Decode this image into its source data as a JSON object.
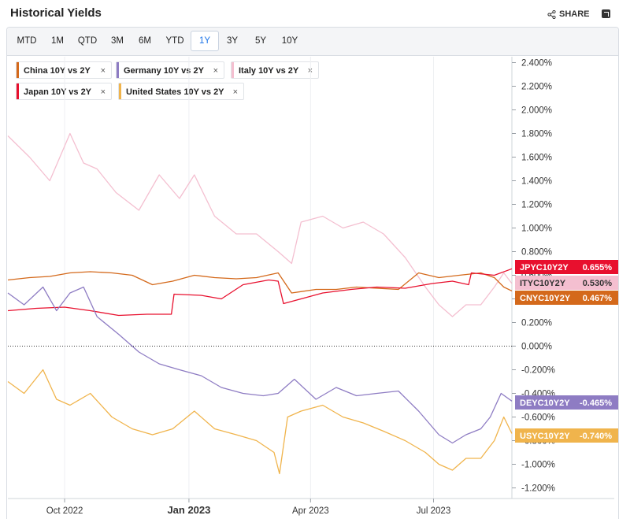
{
  "header": {
    "title": "Historical Yields",
    "share_label": "SHARE"
  },
  "tabs": [
    "MTD",
    "1M",
    "QTD",
    "3M",
    "6M",
    "YTD",
    "1Y",
    "3Y",
    "5Y",
    "10Y"
  ],
  "active_tab": "1Y",
  "legend": [
    {
      "label": "China 10Y vs 2Y",
      "color": "#d4691b"
    },
    {
      "label": "Germany 10Y vs 2Y",
      "color": "#8e7cc3"
    },
    {
      "label": "Italy 10Y vs 2Y",
      "color": "#f4bfd0"
    },
    {
      "label": "Japan 10Y vs 2Y",
      "color": "#e8102e"
    },
    {
      "label": "United States 10Y vs 2Y",
      "color": "#f0b44c"
    }
  ],
  "chart_data": {
    "type": "line",
    "title": "Historical Yields",
    "x_ticks": [
      "Oct 2022",
      "Jan 2023",
      "Apr 2023",
      "Jul 2023"
    ],
    "x_range": [
      "2022-08-20",
      "2023-08-28"
    ],
    "ylim": [
      -1.25,
      2.5
    ],
    "y_ticks": [
      "2.400%",
      "2.200%",
      "2.000%",
      "1.800%",
      "1.600%",
      "1.400%",
      "1.200%",
      "1.000%",
      "0.800%",
      "0.600%",
      "0.400%",
      "0.200%",
      "0.000%",
      "-0.200%",
      "-0.400%",
      "-0.600%",
      "-0.800%",
      "-1.000%",
      "-1.200%"
    ],
    "zero_line": "dotted",
    "series": [
      {
        "name": "Italy 10Y vs 2Y",
        "ticker": "ITYC10Y2Y",
        "last": "0.530%",
        "color": "#f4bfd0",
        "x": [
          "2022-08-20",
          "2022-09-05",
          "2022-09-20",
          "2022-10-05",
          "2022-10-15",
          "2022-10-25",
          "2022-11-08",
          "2022-11-25",
          "2022-12-10",
          "2022-12-25",
          "2023-01-05",
          "2023-01-20",
          "2023-02-05",
          "2023-02-20",
          "2023-03-08",
          "2023-03-18",
          "2023-03-25",
          "2023-04-10",
          "2023-04-25",
          "2023-05-10",
          "2023-05-25",
          "2023-06-10",
          "2023-06-25",
          "2023-07-05",
          "2023-07-15",
          "2023-07-25",
          "2023-08-05",
          "2023-08-15",
          "2023-08-22",
          "2023-08-28"
        ],
        "values": [
          1.78,
          1.6,
          1.4,
          1.8,
          1.55,
          1.5,
          1.3,
          1.15,
          1.45,
          1.25,
          1.45,
          1.1,
          0.95,
          0.95,
          0.8,
          0.7,
          1.05,
          1.1,
          1.0,
          1.05,
          0.95,
          0.75,
          0.5,
          0.35,
          0.25,
          0.35,
          0.35,
          0.5,
          0.62,
          0.53
        ]
      },
      {
        "name": "China 10Y vs 2Y",
        "ticker": "CNYC10Y2Y",
        "last": "0.467%",
        "color": "#d4691b",
        "x": [
          "2022-08-20",
          "2022-09-05",
          "2022-09-20",
          "2022-10-05",
          "2022-10-20",
          "2022-11-05",
          "2022-11-20",
          "2022-12-05",
          "2022-12-20",
          "2023-01-05",
          "2023-01-20",
          "2023-02-05",
          "2023-02-20",
          "2023-03-08",
          "2023-03-18",
          "2023-04-05",
          "2023-04-20",
          "2023-05-05",
          "2023-05-20",
          "2023-06-05",
          "2023-06-20",
          "2023-07-05",
          "2023-07-20",
          "2023-08-05",
          "2023-08-15",
          "2023-08-22",
          "2023-08-28"
        ],
        "values": [
          0.56,
          0.58,
          0.59,
          0.62,
          0.63,
          0.62,
          0.6,
          0.52,
          0.55,
          0.6,
          0.58,
          0.57,
          0.58,
          0.62,
          0.45,
          0.48,
          0.48,
          0.5,
          0.49,
          0.48,
          0.62,
          0.58,
          0.6,
          0.62,
          0.58,
          0.5,
          0.467
        ]
      },
      {
        "name": "Japan 10Y vs 2Y",
        "ticker": "JPYC10Y2Y",
        "last": "0.655%",
        "color": "#e8102e",
        "x": [
          "2022-08-20",
          "2022-09-10",
          "2022-10-01",
          "2022-10-20",
          "2022-11-10",
          "2022-12-01",
          "2022-12-19",
          "2022-12-21",
          "2023-01-10",
          "2023-01-25",
          "2023-02-10",
          "2023-03-01",
          "2023-03-08",
          "2023-03-12",
          "2023-03-25",
          "2023-04-10",
          "2023-05-01",
          "2023-05-20",
          "2023-06-10",
          "2023-06-30",
          "2023-07-15",
          "2023-07-27",
          "2023-07-29",
          "2023-08-15",
          "2023-08-28"
        ],
        "values": [
          0.3,
          0.32,
          0.33,
          0.3,
          0.26,
          0.27,
          0.27,
          0.44,
          0.43,
          0.4,
          0.52,
          0.56,
          0.55,
          0.36,
          0.4,
          0.45,
          0.48,
          0.5,
          0.49,
          0.53,
          0.55,
          0.52,
          0.62,
          0.6,
          0.655
        ]
      },
      {
        "name": "Germany 10Y vs 2Y",
        "ticker": "DEYC10Y2Y",
        "last": "-0.465%",
        "color": "#8e7cc3",
        "x": [
          "2022-08-20",
          "2022-09-01",
          "2022-09-15",
          "2022-09-25",
          "2022-10-05",
          "2022-10-15",
          "2022-10-25",
          "2022-11-10",
          "2022-11-25",
          "2022-12-10",
          "2022-12-25",
          "2023-01-10",
          "2023-01-25",
          "2023-02-10",
          "2023-02-25",
          "2023-03-08",
          "2023-03-20",
          "2023-04-05",
          "2023-04-20",
          "2023-05-05",
          "2023-05-20",
          "2023-06-05",
          "2023-06-20",
          "2023-07-05",
          "2023-07-15",
          "2023-07-25",
          "2023-08-05",
          "2023-08-12",
          "2023-08-20",
          "2023-08-28"
        ],
        "values": [
          0.45,
          0.35,
          0.5,
          0.3,
          0.45,
          0.5,
          0.25,
          0.1,
          -0.05,
          -0.15,
          -0.2,
          -0.25,
          -0.35,
          -0.4,
          -0.42,
          -0.4,
          -0.28,
          -0.45,
          -0.35,
          -0.42,
          -0.4,
          -0.38,
          -0.55,
          -0.75,
          -0.82,
          -0.75,
          -0.7,
          -0.6,
          -0.4,
          -0.465
        ]
      },
      {
        "name": "United States 10Y vs 2Y",
        "ticker": "USYC10Y2Y",
        "last": "-0.740%",
        "color": "#f0b44c",
        "x": [
          "2022-08-20",
          "2022-09-01",
          "2022-09-15",
          "2022-09-25",
          "2022-10-05",
          "2022-10-20",
          "2022-11-05",
          "2022-11-20",
          "2022-12-05",
          "2022-12-20",
          "2023-01-05",
          "2023-01-20",
          "2023-02-05",
          "2023-02-20",
          "2023-03-05",
          "2023-03-09",
          "2023-03-15",
          "2023-03-25",
          "2023-04-10",
          "2023-04-25",
          "2023-05-10",
          "2023-05-25",
          "2023-06-10",
          "2023-06-25",
          "2023-07-05",
          "2023-07-15",
          "2023-07-25",
          "2023-08-05",
          "2023-08-15",
          "2023-08-22",
          "2023-08-28"
        ],
        "values": [
          -0.3,
          -0.4,
          -0.2,
          -0.45,
          -0.5,
          -0.4,
          -0.6,
          -0.7,
          -0.75,
          -0.7,
          -0.55,
          -0.7,
          -0.75,
          -0.8,
          -0.9,
          -1.08,
          -0.6,
          -0.55,
          -0.5,
          -0.6,
          -0.65,
          -0.72,
          -0.8,
          -0.9,
          -1.0,
          -1.05,
          -0.95,
          -0.95,
          -0.8,
          -0.6,
          -0.74
        ]
      }
    ]
  }
}
